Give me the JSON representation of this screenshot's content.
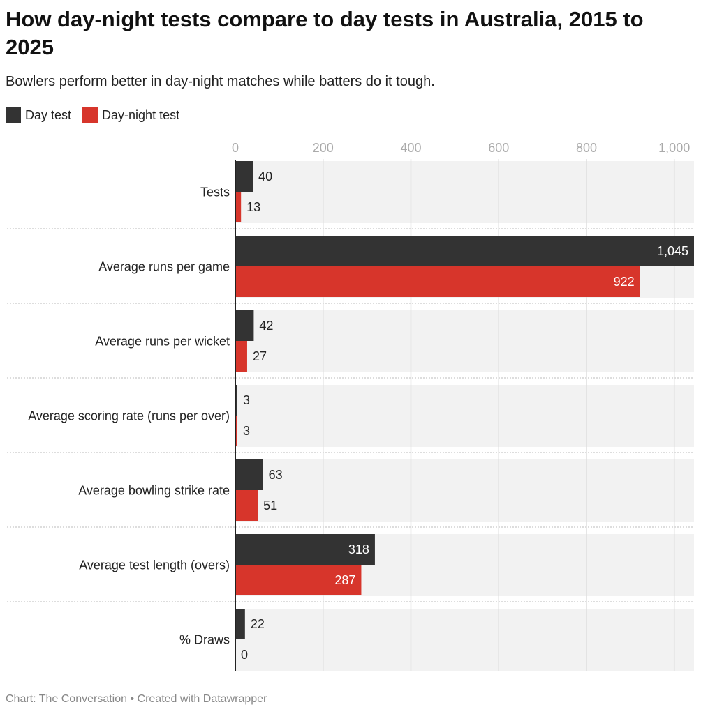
{
  "title": "How day-night tests compare to day tests in Australia, 2015 to 2025",
  "subtitle": "Bowlers perform better in day-night matches while batters do it tough.",
  "footer": "Chart: The Conversation • Created with Datawrapper",
  "chart_data": {
    "type": "bar",
    "orientation": "horizontal",
    "categories": [
      "Tests",
      "Average runs per game",
      "Average runs per wicket",
      "Average scoring rate (runs per over)",
      "Average bowling strike rate",
      "Average test length (overs)",
      "% Draws"
    ],
    "series": [
      {
        "name": "Day test",
        "color": "#333333",
        "values": [
          40,
          1045,
          42,
          3,
          63,
          318,
          22
        ],
        "labels": [
          "40",
          "1,045",
          "42",
          "3",
          "63",
          "318",
          "22"
        ]
      },
      {
        "name": "Day-night test",
        "color": "#d7352b",
        "values": [
          13,
          922,
          27,
          3,
          51,
          287,
          0
        ],
        "labels": [
          "13",
          "922",
          "27",
          "3",
          "51",
          "287",
          "0"
        ]
      }
    ],
    "xlim": [
      0,
      1045
    ],
    "xticks": [
      0,
      200,
      400,
      600,
      800,
      1000
    ],
    "xtick_labels": [
      "0",
      "200",
      "400",
      "600",
      "800",
      "1,000"
    ],
    "grid": true,
    "legend": "top-left"
  }
}
